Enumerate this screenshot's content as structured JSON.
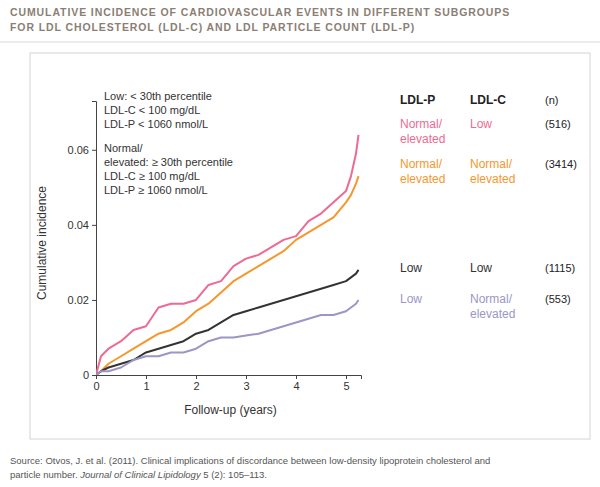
{
  "chart_data": {
    "type": "line",
    "title": [
      "CUMULATIVE INCIDENCE OF CARDIOVASCULAR EVENTS IN DIFFERENT SUBGROUPS",
      "FOR LDL CHOLESTEROL (LDL-C) AND LDL PARTICLE COUNT (LDL-P)"
    ],
    "x_label": "Follow-up (years)",
    "y_label": "Cumulative incidence",
    "annotation": [
      "Low: < 30th percentile",
      "LDL-C < 100 mg/dL",
      "LDL-P < 1060 nmol/L",
      "Normal/",
      "elevated: ≥ 30th percentile",
      "LDL-C ≥ 100 mg/dL",
      "LDL-P ≥ 1060 nmol/L"
    ],
    "legend_columns": [
      "LDL-P",
      "LDL-C",
      "(n)"
    ],
    "x": [
      0,
      0.1,
      0.25,
      0.5,
      0.75,
      1,
      1.25,
      1.5,
      1.75,
      2,
      2.25,
      2.5,
      2.75,
      3,
      3.25,
      3.5,
      3.75,
      4,
      4.25,
      4.5,
      4.75,
      5,
      5.1,
      5.2,
      5.25
    ],
    "series": [
      {
        "labels": [
          "Normal/ elevated",
          "Low",
          "(516)"
        ],
        "color": "#ee6a92",
        "values": [
          0,
          0.005,
          0.007,
          0.009,
          0.012,
          0.013,
          0.018,
          0.019,
          0.019,
          0.02,
          0.024,
          0.025,
          0.029,
          0.031,
          0.032,
          0.034,
          0.036,
          0.037,
          0.041,
          0.043,
          0.046,
          0.049,
          0.053,
          0.059,
          0.064
        ]
      },
      {
        "labels": [
          "Normal/ elevated",
          "Normal/ elevated",
          "(3414)"
        ],
        "color": "#f5972c",
        "values": [
          0,
          0.001,
          0.003,
          0.005,
          0.007,
          0.009,
          0.011,
          0.012,
          0.014,
          0.017,
          0.019,
          0.022,
          0.025,
          0.027,
          0.029,
          0.031,
          0.033,
          0.036,
          0.038,
          0.04,
          0.042,
          0.046,
          0.048,
          0.051,
          0.053
        ]
      },
      {
        "labels": [
          "Low",
          "Low",
          "(1115)"
        ],
        "color": "#333333",
        "values": [
          0,
          0.001,
          0.002,
          0.003,
          0.004,
          0.006,
          0.007,
          0.008,
          0.009,
          0.011,
          0.012,
          0.014,
          0.016,
          0.017,
          0.018,
          0.019,
          0.02,
          0.021,
          0.022,
          0.023,
          0.024,
          0.025,
          0.026,
          0.027,
          0.028
        ]
      },
      {
        "labels": [
          "Low",
          "Normal/ elevated",
          "(553)"
        ],
        "color": "#9a96c6",
        "values": [
          0,
          0.001,
          0.001,
          0.002,
          0.004,
          0.005,
          0.005,
          0.006,
          0.006,
          0.007,
          0.009,
          0.01,
          0.01,
          0.0105,
          0.011,
          0.012,
          0.013,
          0.014,
          0.015,
          0.016,
          0.016,
          0.017,
          0.018,
          0.019,
          0.02
        ]
      }
    ],
    "xlim": [
      0,
      5.3
    ],
    "xticks": [
      0,
      1,
      2,
      3,
      4,
      5
    ],
    "ylim": [
      0,
      0.073
    ],
    "yticks": [
      0,
      0.02,
      0.04,
      0.06
    ],
    "grid": false,
    "source": [
      [
        "Source: Otvos, J. et al. (2011). Clinical implications of discordance between low-density lipoprotein cholesterol and"
      ],
      [
        "particle number. ",
        "Journal of Clinical Lipidology",
        " 5 (2): 105–113."
      ]
    ]
  }
}
